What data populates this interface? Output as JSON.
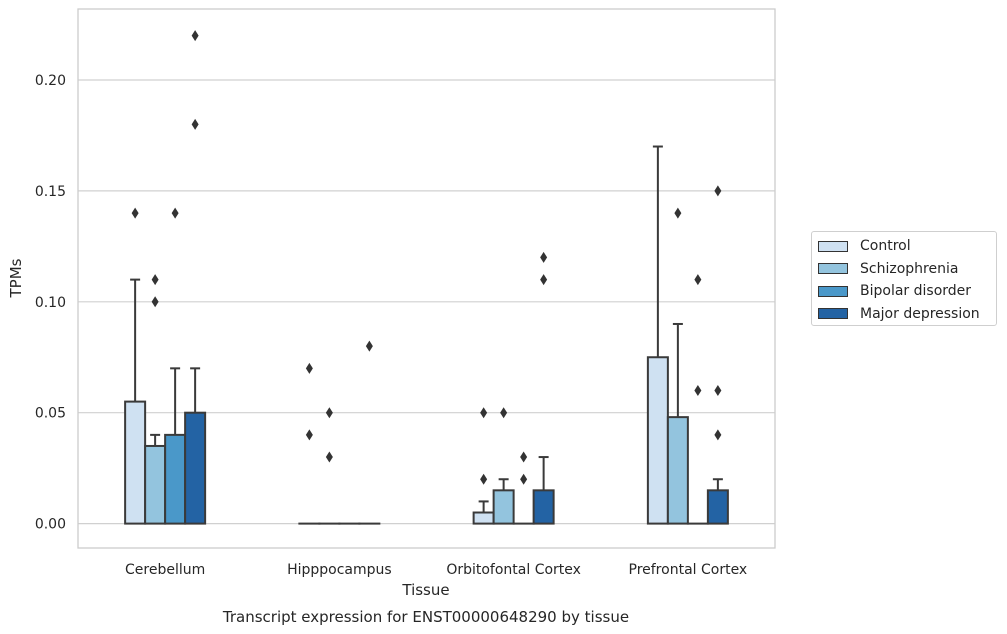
{
  "chart_data": {
    "type": "bar",
    "caption": "Transcript expression for ENST00000648290 by tissue",
    "xlabel": "Tissue",
    "ylabel": "TPMs",
    "ylim": [
      -0.011,
      0.232
    ],
    "yticks": [
      0.0,
      0.05,
      0.1,
      0.15,
      0.2
    ],
    "ytick_labels": [
      "0.00",
      "0.05",
      "0.10",
      "0.15",
      "0.20"
    ],
    "grid": "horizontal",
    "legend_position": "right",
    "categories": [
      "Cerebellum",
      "Hipppocampus",
      "Orbitofontal Cortex",
      "Prefrontal Cortex"
    ],
    "series": [
      {
        "name": "Control",
        "color": "#cfe1f2",
        "values": [
          0.055,
          0.0,
          0.005,
          0.075
        ],
        "whisker": [
          0.11,
          0.0,
          0.01,
          0.17
        ],
        "outliers": [
          [
            0.14
          ],
          [
            0.07,
            0.04
          ],
          [
            0.05,
            0.02
          ],
          []
        ]
      },
      {
        "name": "Schizophrenia",
        "color": "#93c4de",
        "values": [
          0.035,
          0.0,
          0.015,
          0.048
        ],
        "whisker": [
          0.04,
          0.0,
          0.02,
          0.09
        ],
        "outliers": [
          [
            0.11,
            0.1
          ],
          [
            0.05,
            0.03
          ],
          [
            0.05
          ],
          [
            0.14
          ]
        ]
      },
      {
        "name": "Bipolar disorder",
        "color": "#4a98c9",
        "values": [
          0.04,
          0.0,
          0.0,
          0.0
        ],
        "whisker": [
          0.07,
          0.0,
          0.0,
          0.0
        ],
        "outliers": [
          [
            0.14
          ],
          [],
          [
            0.03,
            0.02
          ],
          [
            0.11,
            0.06
          ]
        ]
      },
      {
        "name": "Major depression",
        "color": "#2363a4",
        "values": [
          0.05,
          0.0,
          0.015,
          0.015
        ],
        "whisker": [
          0.07,
          0.0,
          0.03,
          0.02
        ],
        "outliers": [
          [
            0.22,
            0.18
          ],
          [
            0.08
          ],
          [
            0.12,
            0.11
          ],
          [
            0.15,
            0.06,
            0.04
          ]
        ]
      }
    ]
  }
}
